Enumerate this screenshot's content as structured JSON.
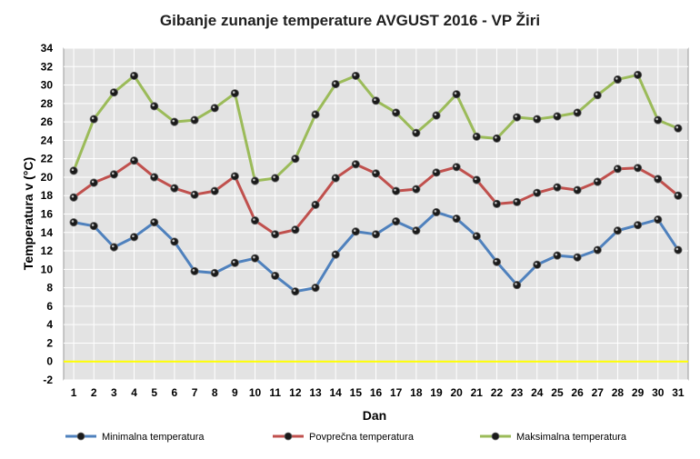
{
  "chart_data": {
    "type": "line",
    "title": "Gibanje zunanje temperature AVGUST 2016 - VP Žiri",
    "xlabel": "Dan",
    "ylabel": "Temperatura v (°C)",
    "ylim": [
      -2,
      34
    ],
    "yticks": [
      -2,
      0,
      2,
      4,
      6,
      8,
      10,
      12,
      14,
      16,
      18,
      20,
      22,
      24,
      26,
      28,
      30,
      32,
      34
    ],
    "categories": [
      "1",
      "2",
      "3",
      "4",
      "5",
      "6",
      "7",
      "8",
      "9",
      "10",
      "11",
      "12",
      "13",
      "14",
      "15",
      "16",
      "17",
      "18",
      "19",
      "20",
      "21",
      "22",
      "23",
      "24",
      "25",
      "26",
      "27",
      "28",
      "29",
      "30",
      "31"
    ],
    "grid": true,
    "legend_position": "bottom",
    "zero_line_color": "#ffff00",
    "series": [
      {
        "name": "Minimalna temperatura",
        "color": "#4f81bd",
        "values": [
          15.1,
          14.7,
          12.4,
          13.5,
          15.1,
          13.0,
          9.8,
          9.6,
          10.7,
          11.2,
          9.3,
          7.6,
          8.0,
          11.6,
          14.1,
          13.8,
          15.2,
          14.2,
          16.2,
          15.5,
          13.6,
          10.8,
          8.3,
          10.5,
          11.5,
          11.3,
          12.1,
          14.2,
          14.8,
          15.4,
          12.1
        ]
      },
      {
        "name": "Povprečna temperatura",
        "color": "#c0504d",
        "values": [
          17.8,
          19.4,
          20.3,
          21.8,
          20.0,
          18.8,
          18.1,
          18.5,
          20.1,
          15.3,
          13.8,
          14.3,
          17.0,
          19.9,
          21.4,
          20.4,
          18.5,
          18.7,
          20.5,
          21.1,
          19.7,
          17.1,
          17.3,
          18.3,
          18.9,
          18.6,
          19.5,
          20.9,
          21.0,
          19.8,
          18.0
        ]
      },
      {
        "name": "Maksimalna temperatura",
        "color": "#9bbb59",
        "values": [
          20.7,
          26.3,
          29.2,
          31.0,
          27.7,
          26.0,
          26.2,
          27.5,
          29.1,
          19.6,
          19.9,
          22.0,
          26.8,
          30.1,
          31.0,
          28.3,
          27.0,
          24.8,
          26.7,
          29.0,
          24.4,
          24.2,
          26.5,
          26.3,
          26.6,
          27.0,
          28.9,
          30.6,
          31.1,
          26.2,
          25.3
        ]
      }
    ]
  }
}
